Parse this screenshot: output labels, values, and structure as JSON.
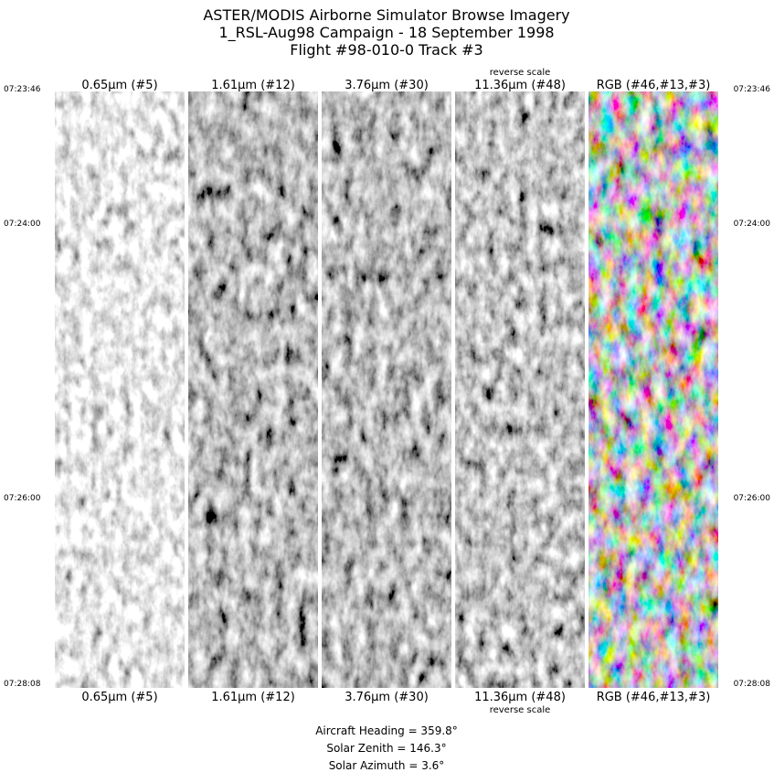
{
  "header": {
    "lines": [
      "ASTER/MODIS Airborne Simulator Browse Imagery",
      "1_RSL-Aug98 Campaign - 18 September 1998",
      "Flight #98-010-0 Track #3"
    ]
  },
  "panels": [
    {
      "top_label": "0.65μm (#5)",
      "bottom_label": "0.65μm (#5)"
    },
    {
      "top_label": "1.61μm (#12)",
      "bottom_label": "1.61μm (#12)"
    },
    {
      "top_label": "3.76μm (#30)",
      "bottom_label": "3.76μm (#30)"
    },
    {
      "top_label": "11.36μm (#48)",
      "bottom_label": "11.36μm (#48)",
      "top_note": "reverse scale",
      "bottom_note": "reverse scale"
    },
    {
      "top_label": "RGB (#46,#13,#3)",
      "bottom_label": "RGB (#46,#13,#3)"
    }
  ],
  "time_labels": [
    "07:23:46",
    "07:24:00",
    "07:26:00",
    "07:28:08"
  ],
  "footer": {
    "lines": [
      "Aircraft Heading =  359.8°",
      "Solar Zenith =  146.3°",
      "Solar Azimuth =    3.6°"
    ]
  }
}
